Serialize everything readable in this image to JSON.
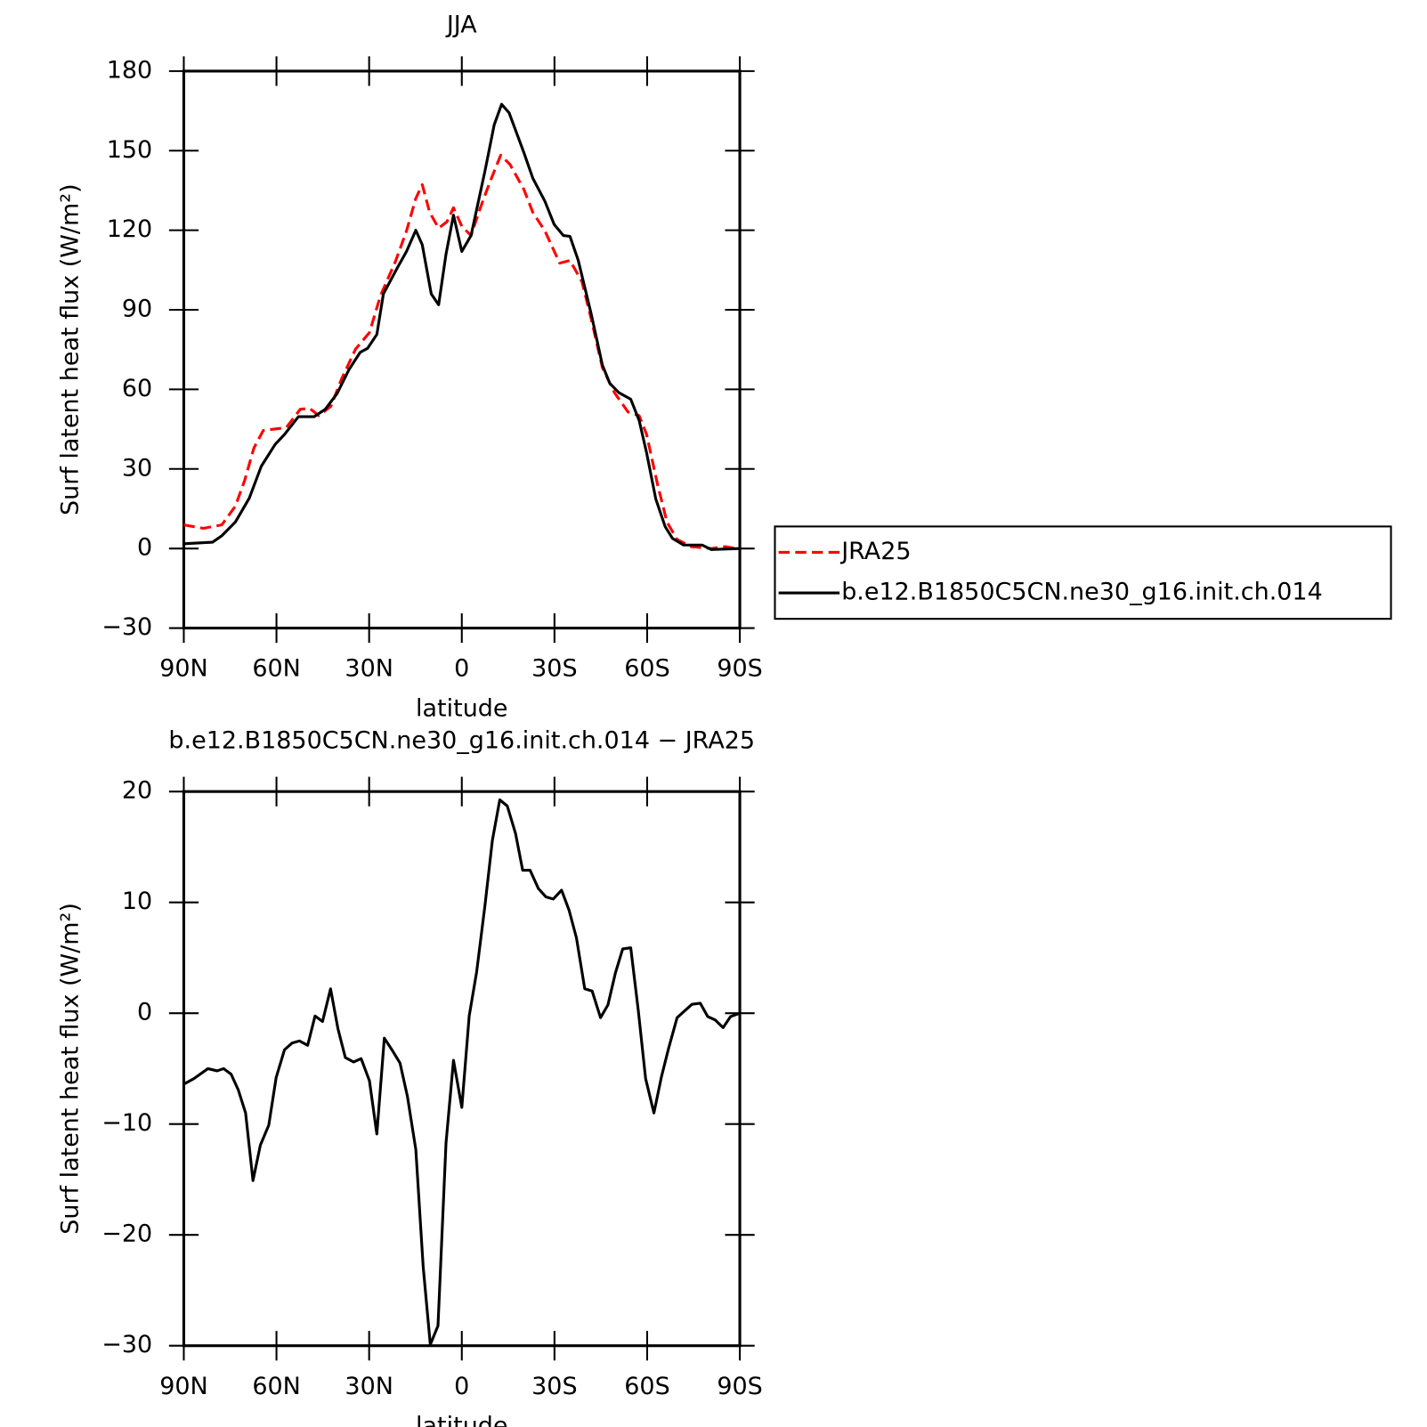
{
  "chart_data": [
    {
      "type": "line",
      "title": "JJA",
      "xlabel": "latitude",
      "ylabel": "Surf latent heat flux (W/m²)",
      "xlim": [
        90,
        -90
      ],
      "xticks": [
        {
          "value": 90,
          "label": "90N"
        },
        {
          "value": 60,
          "label": "60N"
        },
        {
          "value": 30,
          "label": "30N"
        },
        0,
        {
          "value": -30,
          "label": "30S"
        },
        {
          "value": -60,
          "label": "60S"
        },
        {
          "value": -90,
          "label": "90S"
        }
      ],
      "ylim": [
        -30,
        180
      ],
      "yticks": [
        {
          "value": -30,
          "label": "−30"
        },
        0,
        30,
        60,
        90,
        120,
        150,
        180
      ],
      "legend": "right",
      "series": [
        {
          "name": "JRA25",
          "color": "#ff0000",
          "style": "dashed",
          "x": [
            90,
            83.7,
            77.7,
            73.3,
            70.3,
            67.3,
            64.3,
            56.8,
            52.3,
            49.3,
            46.3,
            42.4,
            38.9,
            34.4,
            29.9,
            26.3,
            21.5,
            17.9,
            14.9,
            12.8,
            10.4,
            7.5,
            4.8,
            2.7,
            0,
            -3,
            -6,
            -9,
            -12.6,
            -15.6,
            -20.1,
            -23,
            -26.9,
            -31.7,
            -35,
            -38.9,
            -41.9,
            -45.5,
            -49.4,
            -53.8,
            -57.4,
            -59.8,
            -63.4,
            -66.4,
            -69.7,
            -74.2,
            -80.8,
            -85.3,
            -90
          ],
          "values": [
            8.9,
            7.6,
            8.9,
            16,
            25.7,
            37.9,
            44.5,
            45.6,
            52.5,
            52.9,
            50.1,
            53.6,
            64,
            75.2,
            81.4,
            95.4,
            108.2,
            119.7,
            132,
            137.2,
            126.7,
            120.8,
            123.2,
            128.5,
            121.5,
            118,
            128.5,
            137.9,
            148.3,
            144.8,
            135.4,
            126.7,
            119.7,
            107.6,
            108.6,
            100.6,
            86.6,
            68.2,
            58.8,
            51.5,
            50.1,
            43.1,
            24,
            10,
            3.4,
            0.7,
            0,
            0.7,
            -0.3
          ]
        },
        {
          "name": "b.e12.B1850C5CN.ne30_g16.init.ch.014",
          "color": "#000000",
          "style": "solid",
          "x": [
            90,
            80.7,
            77.7,
            73.3,
            68.8,
            64.9,
            60.4,
            57.4,
            52.9,
            47.8,
            44.2,
            40.4,
            36.5,
            32.9,
            30.5,
            27.5,
            25.4,
            20.9,
            17.9,
            14.9,
            12.8,
            9.9,
            7.5,
            5.1,
            2.7,
            0,
            -3,
            -7.5,
            -10.5,
            -12.9,
            -15.3,
            -20.1,
            -23,
            -26.9,
            -29.9,
            -32.9,
            -35,
            -37.7,
            -41.9,
            -45.5,
            -47.9,
            -50.8,
            -54.7,
            -57.4,
            -59.8,
            -62.8,
            -65.8,
            -68.2,
            -71.8,
            -77.8,
            -80.8,
            -90
          ],
          "values": [
            1.8,
            2.4,
            4.8,
            10,
            19,
            31,
            39.3,
            43,
            49.7,
            49.7,
            52.5,
            58.4,
            67.5,
            74,
            75.5,
            80.7,
            96,
            105.8,
            112,
            120,
            114.5,
            96,
            91.9,
            111,
            125.7,
            112,
            118,
            142.4,
            159.8,
            167.5,
            164.3,
            149.3,
            139.6,
            130.9,
            122.2,
            118,
            117.7,
            108.6,
            88.4,
            69.2,
            62.3,
            58.8,
            56.3,
            48.3,
            36.2,
            18.7,
            8.3,
            3.8,
            1.3,
            1.3,
            -0.4,
            0
          ]
        }
      ]
    },
    {
      "type": "line",
      "title": "b.e12.B1850C5CN.ne30_g16.init.ch.014 − JRA25",
      "xlabel": "latitude",
      "ylabel": "Surf latent heat flux (W/m²)",
      "xlim": [
        90,
        -90
      ],
      "xticks": [
        {
          "value": 90,
          "label": "90N"
        },
        {
          "value": 60,
          "label": "60N"
        },
        {
          "value": 30,
          "label": "30N"
        },
        0,
        {
          "value": -30,
          "label": "30S"
        },
        {
          "value": -60,
          "label": "60S"
        },
        {
          "value": -90,
          "label": "90S"
        }
      ],
      "ylim": [
        -30,
        20
      ],
      "yticks": [
        {
          "value": -30,
          "label": "−30"
        },
        {
          "value": -20,
          "label": "−20"
        },
        {
          "value": -10,
          "label": "−10"
        },
        0,
        10,
        20
      ],
      "series": [
        {
          "color": "#000000",
          "style": "solid",
          "x": [
            90,
            86.7,
            82.2,
            79.2,
            77.1,
            74.7,
            72.4,
            70,
            67.6,
            65.2,
            62.5,
            60.1,
            57.4,
            55,
            52.6,
            49.9,
            47.5,
            45.1,
            42.5,
            40.1,
            37.7,
            35,
            32.6,
            29.9,
            27.5,
            25.1,
            22.4,
            20,
            17.6,
            14.9,
            12.5,
            10.2,
            7.7,
            5.1,
            2.7,
            0,
            -2.4,
            -4.8,
            -7.5,
            -9.9,
            -12.3,
            -14.7,
            -17.4,
            -19.7,
            -22.1,
            -24.8,
            -27.2,
            -29.6,
            -32.3,
            -34.7,
            -37.1,
            -39.8,
            -42.2,
            -44.9,
            -47.3,
            -49.7,
            -52.1,
            -54.7,
            -57.1,
            -59.5,
            -62.2,
            -64.6,
            -67,
            -69.7,
            -72.1,
            -74.5,
            -77.2,
            -79.6,
            -82,
            -84.6,
            -87,
            -90
          ],
          "values": [
            -6.4,
            -5.9,
            -5,
            -5.2,
            -5,
            -5.5,
            -6.9,
            -9,
            -15.1,
            -11.9,
            -10.1,
            -5.8,
            -3.3,
            -2.7,
            -2.5,
            -2.9,
            -0.25,
            -0.75,
            2.2,
            -1.4,
            -4,
            -4.4,
            -4.1,
            -6.1,
            -10.9,
            -2.25,
            -3.4,
            -4.5,
            -7.5,
            -12.3,
            -22.9,
            -29.9,
            -28.2,
            -11.7,
            -4.25,
            -8.5,
            -0.25,
            3.75,
            9.75,
            15.6,
            19.25,
            18.7,
            16.2,
            12.9,
            12.9,
            11.25,
            10.5,
            10.3,
            11.1,
            9.3,
            6.8,
            2.2,
            2,
            -0.4,
            0.75,
            3.6,
            5.8,
            5.9,
            0.3,
            -5.9,
            -9,
            -5.75,
            -3.1,
            -0.4,
            0.2,
            0.8,
            0.9,
            -0.3,
            -0.6,
            -1.3,
            -0.3,
            0
          ]
        }
      ]
    }
  ]
}
